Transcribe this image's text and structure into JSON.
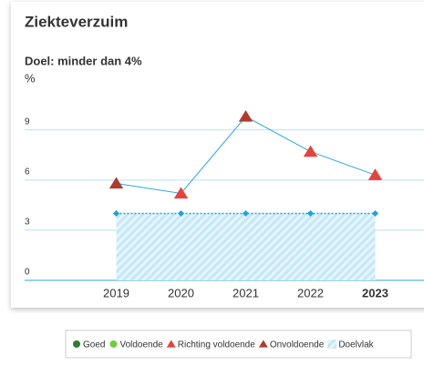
{
  "chart_data": {
    "type": "line",
    "title": "Ziekteverzuim",
    "subtitle": "Doel: minder dan 4%",
    "y_label": "%",
    "categories": [
      "2019",
      "2020",
      "2021",
      "2022",
      "2023"
    ],
    "highlight": [
      false,
      false,
      false,
      false,
      true
    ],
    "series": [
      {
        "values": [
          5.8,
          5.2,
          9.8,
          7.7,
          6.3
        ],
        "color": "#29a8e0",
        "point_colors": [
          "#b03a2e",
          "#e8413c",
          "#b03a2e",
          "#e8413c",
          "#e8413c"
        ]
      },
      {
        "values": [
          4,
          4,
          4,
          4,
          4
        ],
        "color": "#1aa3e0",
        "dashed": true
      }
    ],
    "target_area": {
      "values": [
        4,
        4,
        4,
        4,
        4
      ],
      "color": "#bfe6f7"
    },
    "ylim": [
      0,
      11
    ],
    "yticks": [
      0,
      3,
      6,
      9
    ],
    "grid": true,
    "legend": [
      {
        "name": "Goed",
        "symbol": "circle",
        "color": "#2e7d32"
      },
      {
        "name": "Voldoende",
        "symbol": "circle",
        "color": "#6fcf3b"
      },
      {
        "name": "Richting voldoende",
        "symbol": "triangle",
        "color": "#e8413c"
      },
      {
        "name": "Onvoldoende",
        "symbol": "triangle",
        "color": "#b03a2e"
      },
      {
        "name": "Doelvlak",
        "symbol": "hatch",
        "color": "#bfe6f7"
      }
    ]
  }
}
